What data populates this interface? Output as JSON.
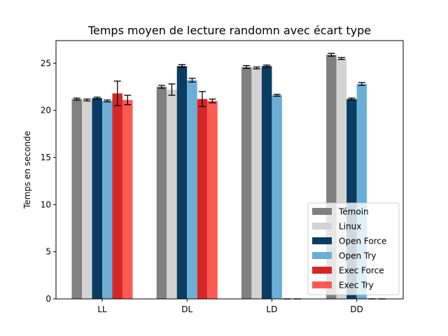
{
  "chart_data": {
    "type": "bar",
    "title": "Temps moyen de lecture randomn avec écart type",
    "xlabel": "",
    "ylabel": "Temps en seconde",
    "ylim": [
      0,
      27.4
    ],
    "yticks": [
      0,
      5,
      10,
      15,
      20,
      25
    ],
    "categories": [
      "LL",
      "DL",
      "LD",
      "DD"
    ],
    "series": [
      {
        "name": "Témoin",
        "color": "#808080",
        "values": [
          21.2,
          22.5,
          24.6,
          25.9
        ],
        "errors": [
          0.1,
          0.15,
          0.15,
          0.15
        ]
      },
      {
        "name": "Linux",
        "color": "#d3d3d3",
        "values": [
          21.1,
          22.2,
          24.5,
          25.5
        ],
        "errors": [
          0.1,
          0.6,
          0.1,
          0.1
        ]
      },
      {
        "name": "Open Force",
        "color": "#0b3c61",
        "values": [
          21.3,
          24.7,
          24.7,
          21.2
        ],
        "errors": [
          0.1,
          0.15,
          0.1,
          0.1
        ]
      },
      {
        "name": "Open Try",
        "color": "#6baed6",
        "values": [
          21.0,
          23.2,
          21.6,
          22.8
        ],
        "errors": [
          0.1,
          0.2,
          0.1,
          0.15
        ]
      },
      {
        "name": "Exec Force",
        "color": "#d62728",
        "values": [
          21.8,
          21.2,
          0,
          0
        ],
        "errors": [
          1.3,
          0.8,
          0,
          0
        ]
      },
      {
        "name": "Exec Try",
        "color": "#ff5a52",
        "values": [
          21.1,
          21.0,
          0,
          0
        ],
        "errors": [
          0.5,
          0.2,
          0,
          0
        ]
      }
    ],
    "legend_position": "lower right",
    "grid": false
  }
}
